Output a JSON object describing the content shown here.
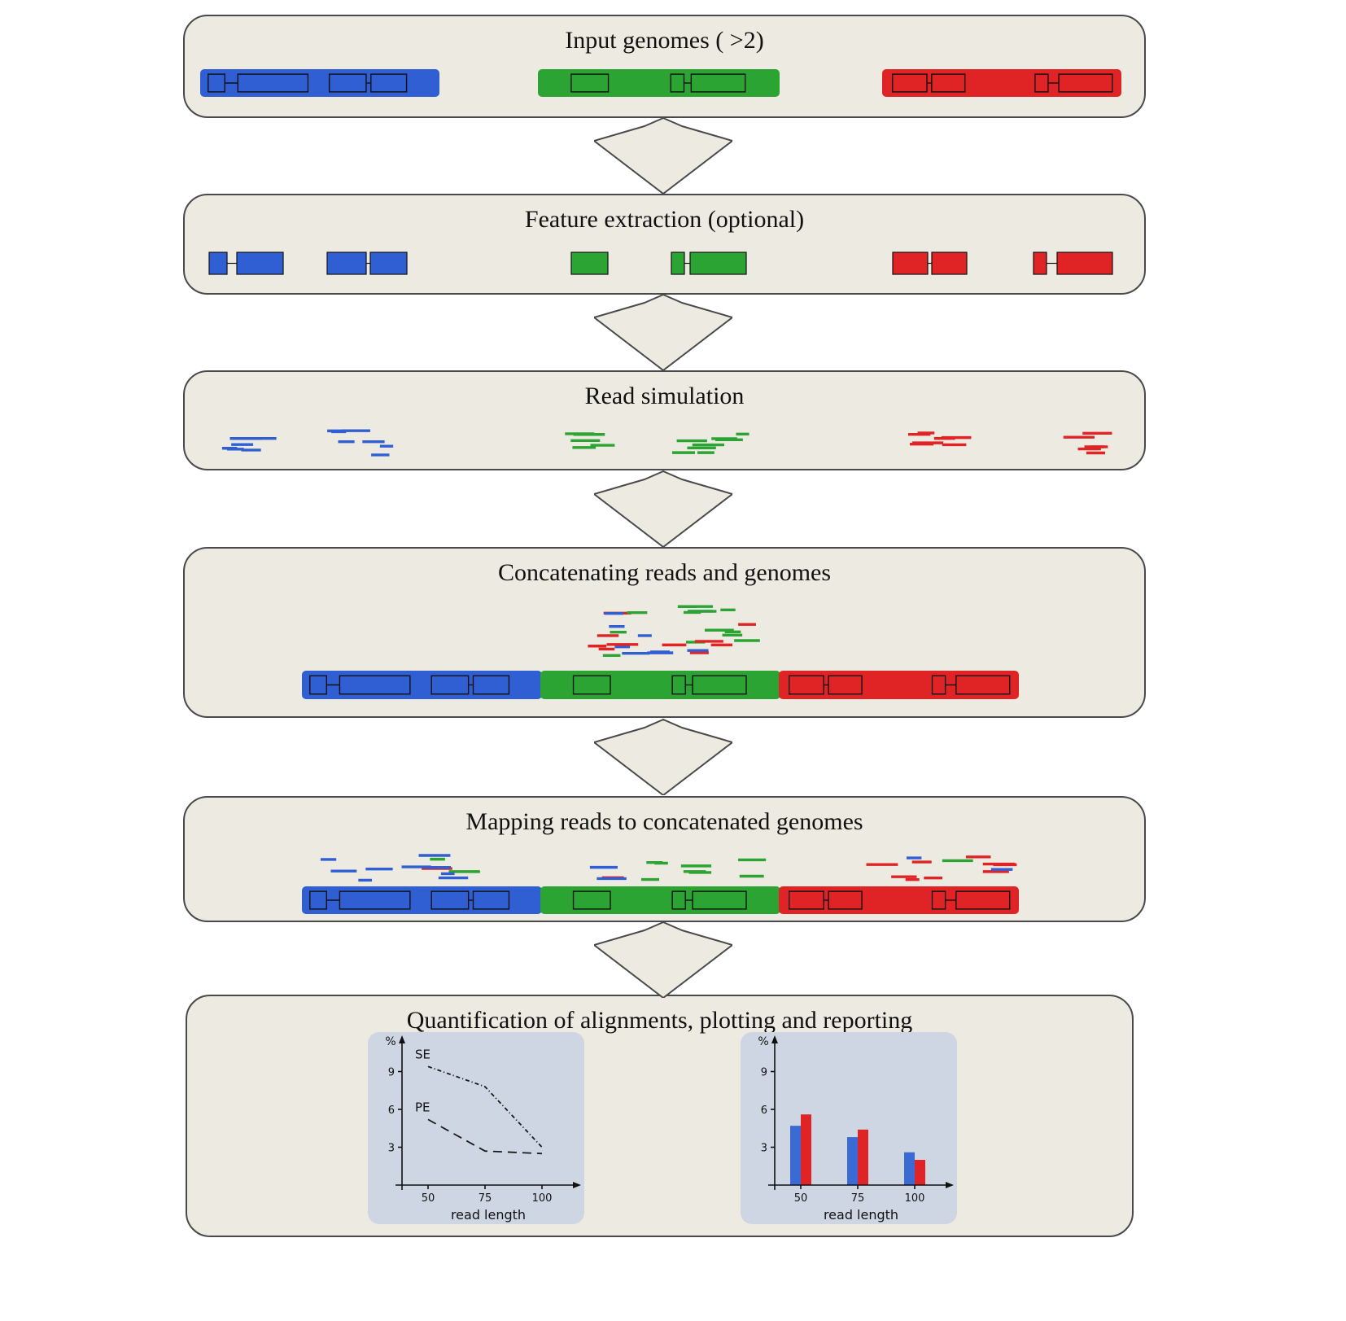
{
  "colors": {
    "panel_bg": "#edeae1",
    "panel_border": "#4a4a4a",
    "blue": "#2f5fd3",
    "green": "#2ca434",
    "red": "#e02426",
    "chart_bg": "#cfd6e3"
  },
  "panels": [
    {
      "title": "Input genomes ( >2)"
    },
    {
      "title": "Feature extraction (optional)"
    },
    {
      "title": "Read simulation"
    },
    {
      "title": "Concatenating reads and genomes"
    },
    {
      "title": "Mapping reads to concatenated genomes"
    },
    {
      "title": "Quantification of alignments, plotting and reporting"
    }
  ],
  "chart_data": [
    {
      "type": "line",
      "ylabel": "%",
      "xlabel": "read length",
      "x": [
        50,
        75,
        100
      ],
      "yticks": [
        3,
        6,
        9
      ],
      "ylim": [
        0,
        11
      ],
      "grid": false,
      "legend_position": "inline",
      "series": [
        {
          "name": "SE",
          "style": "dashdot",
          "color": "#1a1a1a",
          "values": [
            9.4,
            7.8,
            3.0
          ]
        },
        {
          "name": "PE",
          "style": "dashed",
          "color": "#1a1a1a",
          "values": [
            5.2,
            2.7,
            2.5
          ]
        }
      ]
    },
    {
      "type": "bar",
      "ylabel": "%",
      "xlabel": "read length",
      "categories": [
        "50",
        "75",
        "100"
      ],
      "yticks": [
        3,
        6,
        9
      ],
      "ylim": [
        0,
        11
      ],
      "grid": false,
      "series": [
        {
          "name": "blue",
          "color": "#3a6ad4",
          "values": [
            4.7,
            3.8,
            2.6
          ]
        },
        {
          "name": "red",
          "color": "#e02426",
          "values": [
            5.6,
            4.4,
            2.0
          ]
        }
      ]
    }
  ]
}
